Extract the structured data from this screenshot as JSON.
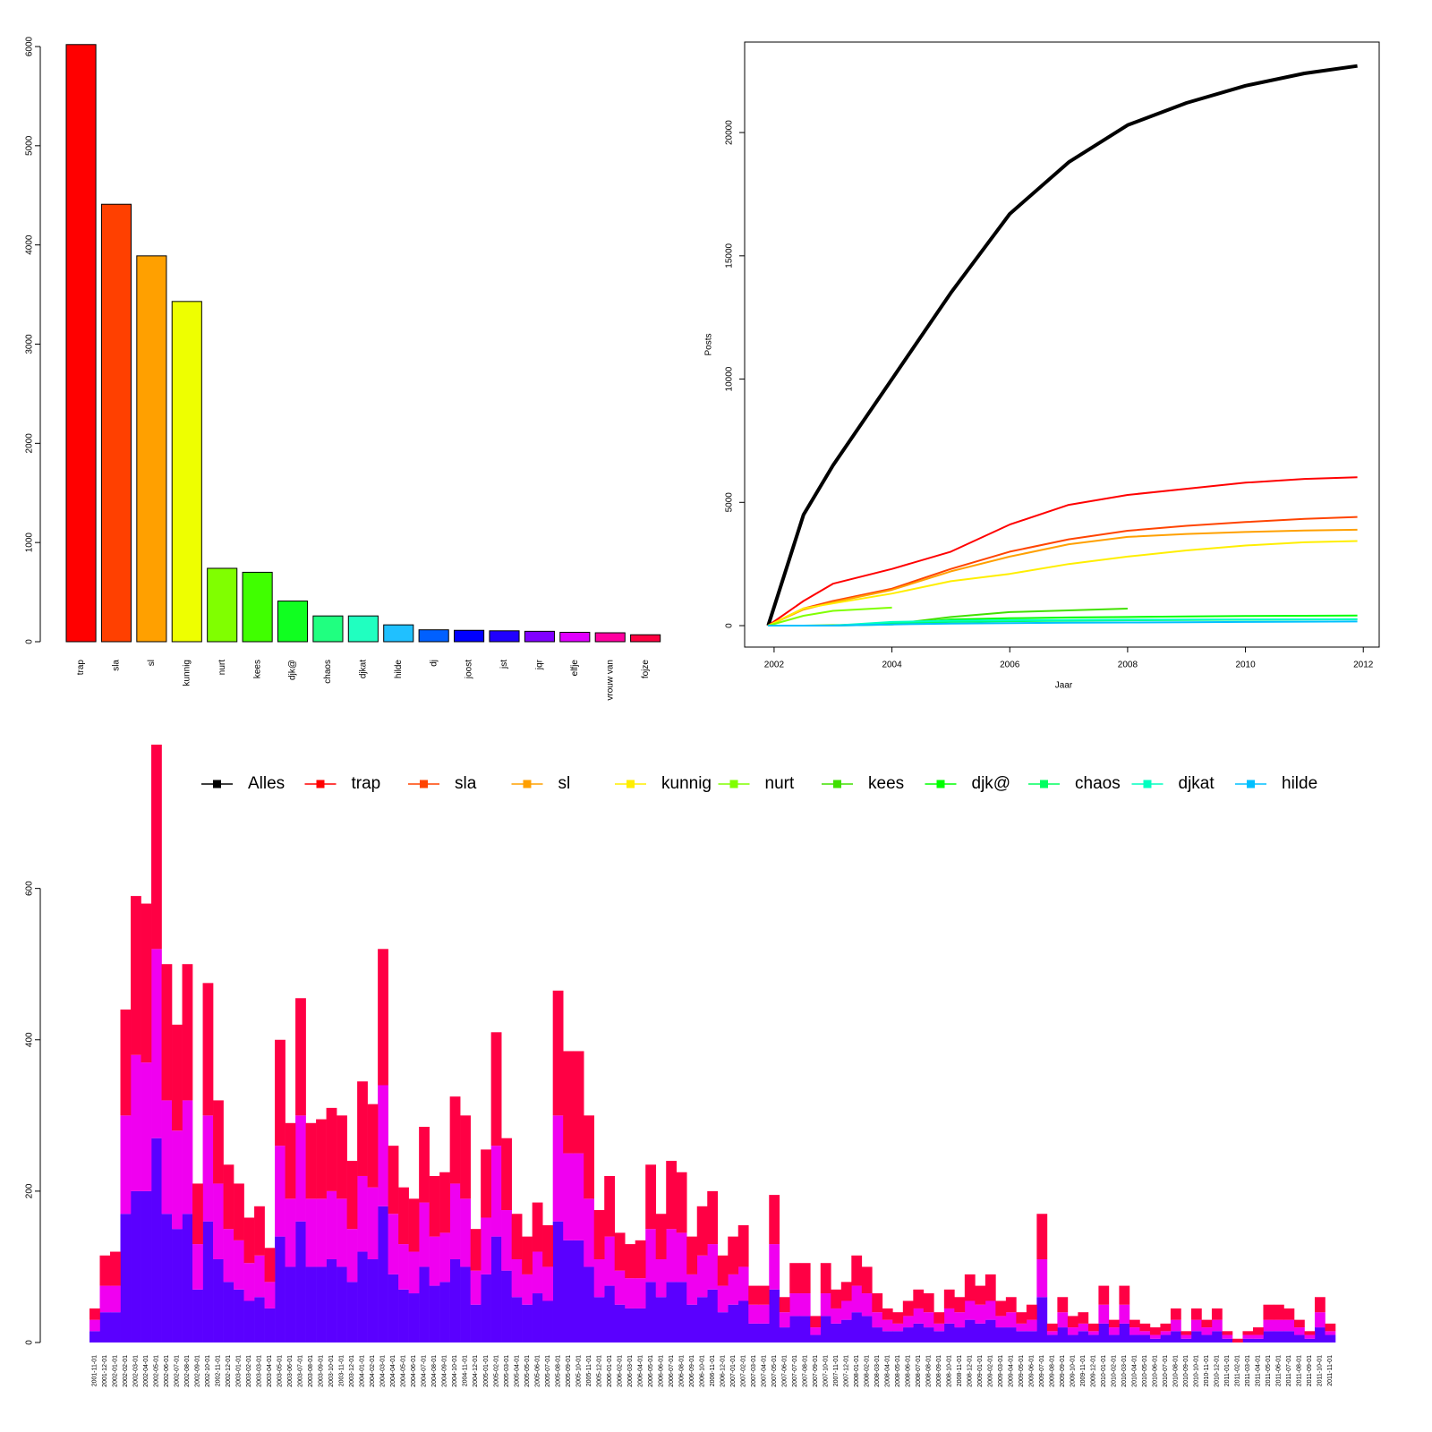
{
  "chart_data": [
    {
      "type": "bar",
      "categories": [
        "trap",
        "sla",
        "sl",
        "kunnig",
        "nurt",
        "kees",
        "djk@",
        "chaos",
        "djkat",
        "hilde",
        "dj",
        "joost",
        "jst",
        "jqr",
        "elfje",
        "vrouw van",
        "fojze"
      ],
      "values": [
        6020,
        4410,
        3890,
        3430,
        740,
        700,
        410,
        260,
        260,
        170,
        120,
        115,
        110,
        105,
        95,
        90,
        70
      ],
      "colors": [
        "#ff0000",
        "#ff4000",
        "#ffa000",
        "#eeff00",
        "#80ff00",
        "#40ff00",
        "#10ff20",
        "#20ff80",
        "#20ffc0",
        "#20c0ff",
        "#0060ff",
        "#0000ff",
        "#2000ff",
        "#8000ff",
        "#e000ff",
        "#ff00a0",
        "#ff0040"
      ],
      "ylim": [
        0,
        6000
      ],
      "yticks": [
        0,
        1000,
        2000,
        3000,
        4000,
        5000,
        6000
      ]
    },
    {
      "type": "line",
      "y_label": "Posts",
      "x_label": "Jaar",
      "x": [
        2001.9,
        2002.5,
        2003,
        2004,
        2005,
        2006,
        2007,
        2008,
        2009,
        2010,
        2011,
        2011.9
      ],
      "series": [
        {
          "name": "Alles",
          "color": "#000000",
          "values": [
            0,
            4500,
            6500,
            10000,
            13500,
            16700,
            18800,
            20300,
            21200,
            21900,
            22400,
            22700
          ]
        },
        {
          "name": "trap",
          "color": "#ff0000",
          "values": [
            0,
            1000,
            1700,
            2300,
            3000,
            4100,
            4900,
            5300,
            5550,
            5800,
            5950,
            6020
          ]
        },
        {
          "name": "sla",
          "color": "#ff4400",
          "values": [
            0,
            700,
            1000,
            1500,
            2300,
            3000,
            3500,
            3850,
            4050,
            4200,
            4330,
            4410
          ]
        },
        {
          "name": "sl",
          "color": "#ffa000",
          "values": [
            0,
            650,
            950,
            1450,
            2200,
            2800,
            3300,
            3600,
            3720,
            3800,
            3860,
            3890
          ]
        },
        {
          "name": "kunnig",
          "color": "#ffee00",
          "values": [
            0,
            700,
            900,
            1300,
            1800,
            2100,
            2500,
            2800,
            3050,
            3250,
            3380,
            3430
          ]
        },
        {
          "name": "nurt",
          "color": "#80ff00",
          "values": [
            0,
            400,
            600,
            730,
            null,
            null,
            null,
            null,
            null,
            null,
            null,
            null
          ]
        },
        {
          "name": "kees",
          "color": "#40e000",
          "values": [
            0,
            0,
            20,
            60,
            350,
            550,
            620,
            690,
            null,
            null,
            null,
            null
          ]
        },
        {
          "name": "djk@",
          "color": "#00ff00",
          "values": [
            0,
            0,
            0,
            50,
            250,
            300,
            330,
            350,
            370,
            390,
            400,
            410
          ]
        },
        {
          "name": "chaos",
          "color": "#00ff60",
          "values": [
            0,
            0,
            0,
            100,
            150,
            180,
            200,
            220,
            230,
            240,
            250,
            260
          ]
        },
        {
          "name": "djkat",
          "color": "#00ffc0",
          "values": [
            0,
            0,
            0,
            150,
            200,
            220,
            230,
            240,
            245,
            250,
            255,
            260
          ]
        },
        {
          "name": "hilde",
          "color": "#00c0ff",
          "values": [
            0,
            0,
            0,
            50,
            80,
            100,
            120,
            130,
            140,
            150,
            160,
            170
          ]
        }
      ],
      "xlim": [
        2001.5,
        2012.27
      ],
      "ylim": [
        -870,
        23670
      ],
      "xticks": [
        2002,
        2004,
        2006,
        2008,
        2010,
        2012
      ],
      "yticks": [
        0,
        5000,
        10000,
        15000,
        20000
      ]
    },
    {
      "type": "stacked_bar",
      "categories": [
        "2001-11-01",
        "2001-12-01",
        "2002-01-01",
        "2002-02-01",
        "2002-03-01",
        "2002-04-01",
        "2002-05-01",
        "2002-06-01",
        "2002-07-01",
        "2002-08-01",
        "2002-09-01",
        "2002-10-01",
        "2002-11-01",
        "2002-12-01",
        "2003-01-01",
        "2003-02-01",
        "2003-03-01",
        "2003-04-01",
        "2003-05-01",
        "2003-06-01",
        "2003-07-01",
        "2003-08-01",
        "2003-09-01",
        "2003-10-01",
        "2003-11-01",
        "2003-12-01",
        "2004-01-01",
        "2004-02-01",
        "2004-03-01",
        "2004-04-01",
        "2004-05-01",
        "2004-06-01",
        "2004-07-01",
        "2004-08-01",
        "2004-09-01",
        "2004-10-01",
        "2004-11-01",
        "2004-12-01",
        "2005-01-01",
        "2005-02-01",
        "2005-03-01",
        "2005-04-01",
        "2005-05-01",
        "2005-06-01",
        "2005-07-01",
        "2005-08-01",
        "2005-09-01",
        "2005-10-01",
        "2005-11-01",
        "2005-12-01",
        "2006-01-01",
        "2006-02-01",
        "2006-03-01",
        "2006-04-01",
        "2006-05-01",
        "2006-06-01",
        "2006-07-01",
        "2006-08-01",
        "2006-09-01",
        "2006-10-01",
        "2006-11-01",
        "2006-12-01",
        "2007-01-01",
        "2007-02-01",
        "2007-03-01",
        "2007-04-01",
        "2007-05-01",
        "2007-06-01",
        "2007-07-01",
        "2007-08-01",
        "2007-09-01",
        "2007-10-01",
        "2007-11-01",
        "2007-12-01",
        "2008-01-01",
        "2008-02-01",
        "2008-03-01",
        "2008-04-01",
        "2008-05-01",
        "2008-06-01",
        "2008-07-01",
        "2008-08-01",
        "2008-09-01",
        "2008-10-01",
        "2008-11-01",
        "2008-12-01",
        "2009-01-01",
        "2009-02-01",
        "2009-03-01",
        "2009-04-01",
        "2009-05-01",
        "2009-06-01",
        "2009-07-01",
        "2009-08-01",
        "2009-09-01",
        "2009-10-01",
        "2009-11-01",
        "2009-12-01",
        "2010-01-01",
        "2010-02-01",
        "2010-03-01",
        "2010-04-01",
        "2010-05-01",
        "2010-06-01",
        "2010-07-01",
        "2010-08-01",
        "2010-09-01",
        "2010-10-01",
        "2010-11-01",
        "2010-12-01",
        "2011-01-01",
        "2011-02-01",
        "2011-03-01",
        "2011-04-01",
        "2011-05-01",
        "2011-06-01",
        "2011-07-01",
        "2011-08-01",
        "2011-09-01",
        "2011-10-01",
        "2011-11-01"
      ],
      "series": [
        {
          "color": "#5a00ff",
          "values": [
            15,
            40,
            40,
            170,
            200,
            200,
            270,
            170,
            150,
            170,
            70,
            160,
            110,
            80,
            70,
            55,
            60,
            45,
            140,
            100,
            160,
            100,
            100,
            110,
            100,
            80,
            120,
            110,
            180,
            90,
            70,
            65,
            100,
            75,
            80,
            110,
            100,
            50,
            90,
            140,
            95,
            60,
            50,
            65,
            55,
            160,
            135,
            135,
            100,
            60,
            75,
            50,
            45,
            45,
            80,
            60,
            80,
            80,
            50,
            60,
            70,
            40,
            50,
            55,
            25,
            25,
            70,
            20,
            35,
            35,
            10,
            35,
            25,
            30,
            40,
            35,
            20,
            15,
            15,
            20,
            25,
            20,
            15,
            25,
            20,
            30,
            25,
            30,
            20,
            20,
            15,
            15,
            60,
            10,
            20,
            10,
            15,
            10,
            25,
            10,
            25,
            10,
            10,
            5,
            10,
            15,
            5,
            15,
            10,
            15,
            5,
            0,
            5,
            5,
            15,
            15,
            15,
            10,
            5,
            20,
            10
          ]
        },
        {
          "color": "#f000f0",
          "values": [
            15,
            35,
            35,
            130,
            180,
            170,
            250,
            150,
            130,
            150,
            60,
            140,
            100,
            70,
            65,
            50,
            55,
            35,
            120,
            90,
            140,
            90,
            90,
            90,
            90,
            70,
            100,
            95,
            160,
            80,
            60,
            55,
            85,
            65,
            65,
            100,
            90,
            45,
            75,
            120,
            80,
            50,
            40,
            55,
            45,
            140,
            115,
            115,
            90,
            50,
            65,
            45,
            40,
            40,
            70,
            50,
            70,
            65,
            40,
            55,
            60,
            35,
            40,
            45,
            25,
            25,
            60,
            20,
            30,
            30,
            10,
            30,
            20,
            25,
            35,
            30,
            20,
            15,
            10,
            15,
            20,
            20,
            10,
            20,
            20,
            25,
            25,
            25,
            15,
            20,
            10,
            15,
            50,
            5,
            20,
            10,
            10,
            5,
            25,
            10,
            25,
            10,
            5,
            5,
            5,
            15,
            5,
            15,
            10,
            15,
            5,
            0,
            5,
            5,
            15,
            15,
            15,
            10,
            5,
            20,
            5
          ]
        },
        {
          "color": "#ff0044",
          "values": [
            15,
            40,
            45,
            140,
            210,
            210,
            270,
            180,
            140,
            180,
            80,
            175,
            110,
            85,
            75,
            60,
            65,
            45,
            140,
            100,
            155,
            100,
            105,
            110,
            110,
            90,
            125,
            110,
            180,
            90,
            75,
            70,
            100,
            80,
            80,
            115,
            110,
            55,
            90,
            150,
            95,
            60,
            50,
            65,
            55,
            165,
            135,
            135,
            110,
            65,
            80,
            50,
            45,
            50,
            85,
            60,
            90,
            80,
            50,
            65,
            70,
            40,
            50,
            55,
            25,
            25,
            65,
            20,
            40,
            40,
            15,
            40,
            25,
            25,
            40,
            35,
            25,
            15,
            15,
            20,
            25,
            25,
            15,
            25,
            20,
            35,
            25,
            35,
            20,
            20,
            15,
            20,
            60,
            10,
            20,
            15,
            15,
            10,
            25,
            10,
            25,
            10,
            10,
            10,
            10,
            15,
            5,
            15,
            10,
            15,
            5,
            5,
            5,
            10,
            20,
            20,
            15,
            10,
            5,
            20,
            10
          ]
        }
      ],
      "ylim": [
        0,
        790
      ],
      "yticks": [
        0,
        200,
        400,
        600
      ]
    }
  ]
}
